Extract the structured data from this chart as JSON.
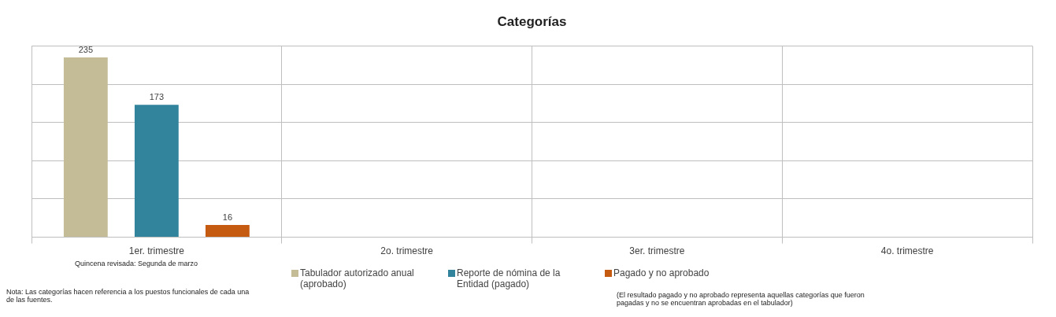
{
  "chart_data": {
    "type": "bar",
    "title": "Categorías",
    "categories": [
      "1er. trimestre",
      "2o. trimestre",
      "3er. trimestre",
      "4o. trimestre"
    ],
    "series": [
      {
        "name": "Tabulador autorizado anual (aprobado)",
        "color": "#c4bc96",
        "values": [
          235,
          null,
          null,
          null
        ]
      },
      {
        "name": "Reporte de nómina de la Entidad (pagado)",
        "color": "#31849b",
        "values": [
          173,
          null,
          null,
          null
        ]
      },
      {
        "name": "Pagado y no aprobado",
        "color": "#c55a11",
        "values": [
          16,
          null,
          null,
          null
        ]
      }
    ],
    "data_labels": true,
    "grid": true,
    "legend": "bottom",
    "tick_labels": "x",
    "annotations": [
      "Quincena revisada: Segunda de marzo",
      "Nota: Las categorías hacen referencia a los puestos funcionales de cada una de las fuentes.",
      "(El resultado pagado y no aprobado representa aquellas categorías que fueron pagadas y no se encuentran aprobadas en el tabulador)"
    ]
  }
}
